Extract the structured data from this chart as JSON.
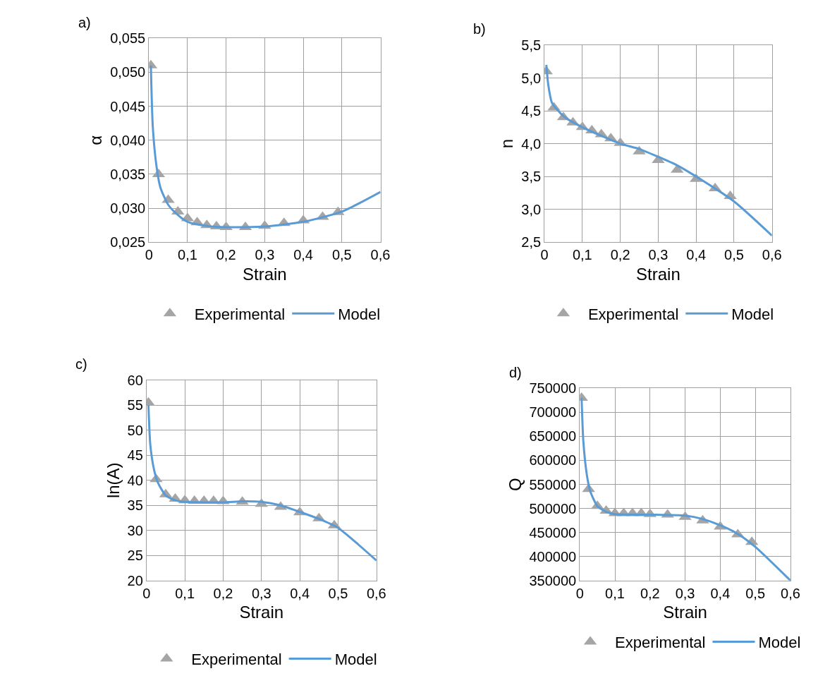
{
  "chart_data": [
    {
      "type": "line",
      "title": "a)",
      "xlabel": "Strain",
      "ylabel": "α",
      "grid": true,
      "legend": "bottom",
      "xlim": [
        0,
        0.6
      ],
      "xticks": [
        0,
        {
          "value": 0.1,
          "label": "0,1"
        },
        {
          "value": 0.2,
          "label": "0,2"
        },
        {
          "value": 0.3,
          "label": "0,3"
        },
        {
          "value": 0.4,
          "label": "0,4"
        },
        {
          "value": 0.5,
          "label": "0,5"
        },
        {
          "value": 0.6,
          "label": "0,6"
        }
      ],
      "ylim": [
        0.025,
        0.055
      ],
      "yticks": [
        {
          "value": 0.025,
          "label": "0,025"
        },
        {
          "value": 0.03,
          "label": "0,030"
        },
        {
          "value": 0.035,
          "label": "0,035"
        },
        {
          "value": 0.04,
          "label": "0,040"
        },
        {
          "value": 0.045,
          "label": "0,045"
        },
        {
          "value": 0.05,
          "label": "0,050"
        },
        {
          "value": 0.055,
          "label": "0,055"
        }
      ],
      "series": [
        {
          "name": "Experimental",
          "type": "scatter",
          "marker": "triangle",
          "color": "#a5a5a5",
          "x": [
            0.005,
            0.025,
            0.05,
            0.075,
            0.1,
            0.125,
            0.15,
            0.175,
            0.2,
            0.25,
            0.3,
            0.35,
            0.4,
            0.45,
            0.49
          ],
          "values": [
            0.051,
            0.035,
            0.0312,
            0.0295,
            0.0285,
            0.0279,
            0.0275,
            0.0273,
            0.0272,
            0.0272,
            0.0274,
            0.0278,
            0.0282,
            0.0287,
            0.0294
          ]
        },
        {
          "name": "Model",
          "type": "line",
          "marker": "none",
          "line_style": "solid",
          "color": "#5b9bd5",
          "x": [
            0.005,
            0.01,
            0.02,
            0.03,
            0.05,
            0.075,
            0.1,
            0.15,
            0.2,
            0.3,
            0.4,
            0.5,
            0.6
          ],
          "values": [
            0.051,
            0.042,
            0.036,
            0.033,
            0.0305,
            0.029,
            0.028,
            0.0274,
            0.0272,
            0.0273,
            0.028,
            0.0295,
            0.0324
          ]
        }
      ]
    },
    {
      "type": "line",
      "title": "b)",
      "xlabel": "Strain",
      "ylabel": "n",
      "grid": true,
      "legend": "bottom",
      "xlim": [
        0,
        0.6
      ],
      "xticks": [
        0,
        {
          "value": 0.1,
          "label": "0,1"
        },
        {
          "value": 0.2,
          "label": "0,2"
        },
        {
          "value": 0.3,
          "label": "0,3"
        },
        {
          "value": 0.4,
          "label": "0,4"
        },
        {
          "value": 0.5,
          "label": "0,5"
        },
        {
          "value": 0.6,
          "label": "0,6"
        }
      ],
      "ylim": [
        2.5,
        5.5
      ],
      "yticks": [
        {
          "value": 2.5,
          "label": "2,5"
        },
        {
          "value": 3,
          "label": "3,0"
        },
        {
          "value": 3.5,
          "label": "3,5"
        },
        {
          "value": 4,
          "label": "4,0"
        },
        {
          "value": 4.5,
          "label": "4,5"
        },
        {
          "value": 5,
          "label": "5,0"
        },
        {
          "value": 5.5,
          "label": "5,5"
        }
      ],
      "series": [
        {
          "name": "Experimental",
          "type": "scatter",
          "marker": "triangle",
          "color": "#a5a5a5",
          "x": [
            0.005,
            0.025,
            0.05,
            0.075,
            0.1,
            0.125,
            0.15,
            0.175,
            0.2,
            0.25,
            0.3,
            0.35,
            0.4,
            0.45,
            0.49
          ],
          "values": [
            5.1,
            4.55,
            4.4,
            4.32,
            4.25,
            4.2,
            4.14,
            4.08,
            4.01,
            3.88,
            3.75,
            3.6,
            3.46,
            3.32,
            3.2
          ]
        },
        {
          "name": "Model",
          "type": "line",
          "marker": "none",
          "line_style": "solid",
          "color": "#5b9bd5",
          "x": [
            0.005,
            0.01,
            0.02,
            0.05,
            0.1,
            0.2,
            0.25,
            0.3,
            0.35,
            0.4,
            0.5,
            0.6
          ],
          "values": [
            5.2,
            4.9,
            4.62,
            4.42,
            4.25,
            4.0,
            3.92,
            3.8,
            3.67,
            3.5,
            3.12,
            2.6
          ]
        }
      ]
    },
    {
      "type": "line",
      "title": "c)",
      "xlabel": "Strain",
      "ylabel": "ln(A)",
      "grid": true,
      "legend": "bottom",
      "xlim": [
        0,
        0.6
      ],
      "xticks": [
        0,
        {
          "value": 0.1,
          "label": "0,1"
        },
        {
          "value": 0.2,
          "label": "0,2"
        },
        {
          "value": 0.3,
          "label": "0,3"
        },
        {
          "value": 0.4,
          "label": "0,4"
        },
        {
          "value": 0.5,
          "label": "0,5"
        },
        {
          "value": 0.6,
          "label": "0,6"
        }
      ],
      "ylim": [
        20,
        60
      ],
      "yticks": [
        20,
        25,
        30,
        35,
        40,
        45,
        50,
        55,
        60
      ],
      "series": [
        {
          "name": "Experimental",
          "type": "scatter",
          "marker": "triangle",
          "color": "#a5a5a5",
          "x": [
            0.005,
            0.025,
            0.05,
            0.075,
            0.1,
            0.125,
            0.15,
            0.175,
            0.2,
            0.25,
            0.3,
            0.35,
            0.4,
            0.45,
            0.49
          ],
          "values": [
            55.5,
            40.2,
            37.2,
            36.3,
            36.0,
            35.9,
            35.9,
            35.9,
            35.8,
            35.7,
            35.3,
            34.7,
            33.6,
            32.4,
            31.0
          ]
        },
        {
          "name": "Model",
          "type": "line",
          "marker": "none",
          "line_style": "solid",
          "color": "#5b9bd5",
          "x": [
            0.005,
            0.01,
            0.02,
            0.03,
            0.05,
            0.075,
            0.1,
            0.2,
            0.25,
            0.3,
            0.35,
            0.4,
            0.45,
            0.5,
            0.6
          ],
          "values": [
            55,
            47,
            42,
            39.5,
            37,
            36,
            35.7,
            35.6,
            35.8,
            35.7,
            35.0,
            33.7,
            32.3,
            30.5,
            24
          ]
        }
      ]
    },
    {
      "type": "line",
      "title": "d)",
      "xlabel": "Strain",
      "ylabel": "Q",
      "grid": true,
      "legend": "bottom",
      "xlim": [
        0,
        0.6
      ],
      "xticks": [
        0,
        {
          "value": 0.1,
          "label": "0,1"
        },
        {
          "value": 0.2,
          "label": "0,2"
        },
        {
          "value": 0.3,
          "label": "0,3"
        },
        {
          "value": 0.4,
          "label": "0,4"
        },
        {
          "value": 0.5,
          "label": "0,5"
        },
        {
          "value": 0.6,
          "label": "0,6"
        }
      ],
      "ylim": [
        350000,
        750000
      ],
      "yticks": [
        350000,
        400000,
        450000,
        500000,
        550000,
        600000,
        650000,
        700000,
        750000
      ],
      "series": [
        {
          "name": "Experimental",
          "type": "scatter",
          "marker": "triangle",
          "color": "#a5a5a5",
          "x": [
            0.005,
            0.025,
            0.05,
            0.075,
            0.1,
            0.125,
            0.15,
            0.175,
            0.2,
            0.25,
            0.3,
            0.35,
            0.4,
            0.45,
            0.49
          ],
          "values": [
            730000,
            540000,
            505000,
            495000,
            490000,
            490000,
            490000,
            490000,
            488000,
            487000,
            482000,
            475000,
            462000,
            446000,
            430000
          ]
        },
        {
          "name": "Model",
          "type": "line",
          "marker": "none",
          "line_style": "solid",
          "color": "#5b9bd5",
          "x": [
            0.005,
            0.01,
            0.02,
            0.03,
            0.05,
            0.075,
            0.1,
            0.2,
            0.3,
            0.35,
            0.4,
            0.45,
            0.5,
            0.6
          ],
          "values": [
            730000,
            640000,
            570000,
            535000,
            505000,
            493000,
            488000,
            487000,
            485000,
            478000,
            465000,
            447000,
            420000,
            350000
          ]
        }
      ]
    }
  ]
}
